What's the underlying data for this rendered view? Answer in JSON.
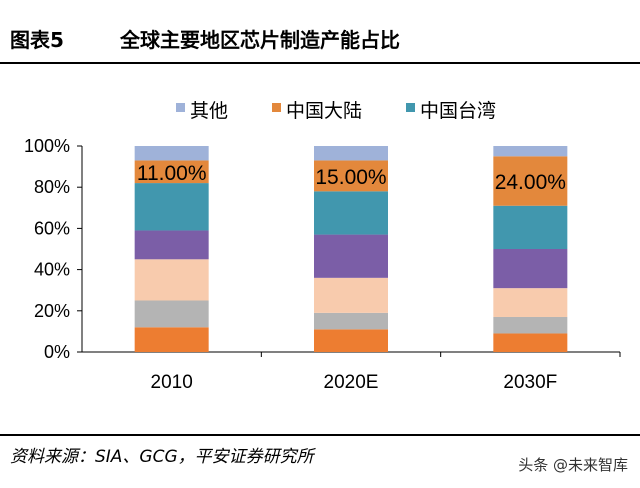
{
  "header": {
    "figure_no": "图表5",
    "title": "全球主要地区芯片制造产能占比"
  },
  "footer": {
    "source": "资料来源：SIA、GCG，平安证券研究所",
    "watermark": "头条 @未来智库"
  },
  "chart_data": {
    "type": "bar",
    "stacked": true,
    "categories": [
      "2010",
      "2020E",
      "2030F"
    ],
    "ylim": [
      0,
      100
    ],
    "yticks": [
      "0%",
      "20%",
      "40%",
      "60%",
      "80%",
      "100%"
    ],
    "legend_position": "top",
    "series": [
      {
        "values": [
          12,
          11,
          9
        ],
        "color": "#ed7d31"
      },
      {
        "values": [
          13,
          8,
          8
        ],
        "color": "#b4b4b4"
      },
      {
        "values": [
          20,
          17,
          14
        ],
        "color": "#f8cbad"
      },
      {
        "values": [
          14,
          21,
          19
        ],
        "color": "#7b5ea7"
      },
      {
        "values": [
          23,
          21,
          21
        ],
        "color": "#4197ae"
      },
      {
        "name": "中国大陆",
        "values": [
          11,
          15,
          24
        ],
        "color": "#e3883c"
      },
      {
        "name": "其他",
        "values": [
          7,
          7,
          5
        ],
        "color": "#9fb2d9"
      }
    ],
    "legend": [
      {
        "label": "其他",
        "color": "#9fb2d9"
      },
      {
        "label": "中国大陆",
        "color": "#e3883c"
      },
      {
        "label": "中国台湾",
        "color": "#4197ae"
      }
    ],
    "data_labels": [
      "11.00%",
      "15.00%",
      "24.00%"
    ]
  }
}
